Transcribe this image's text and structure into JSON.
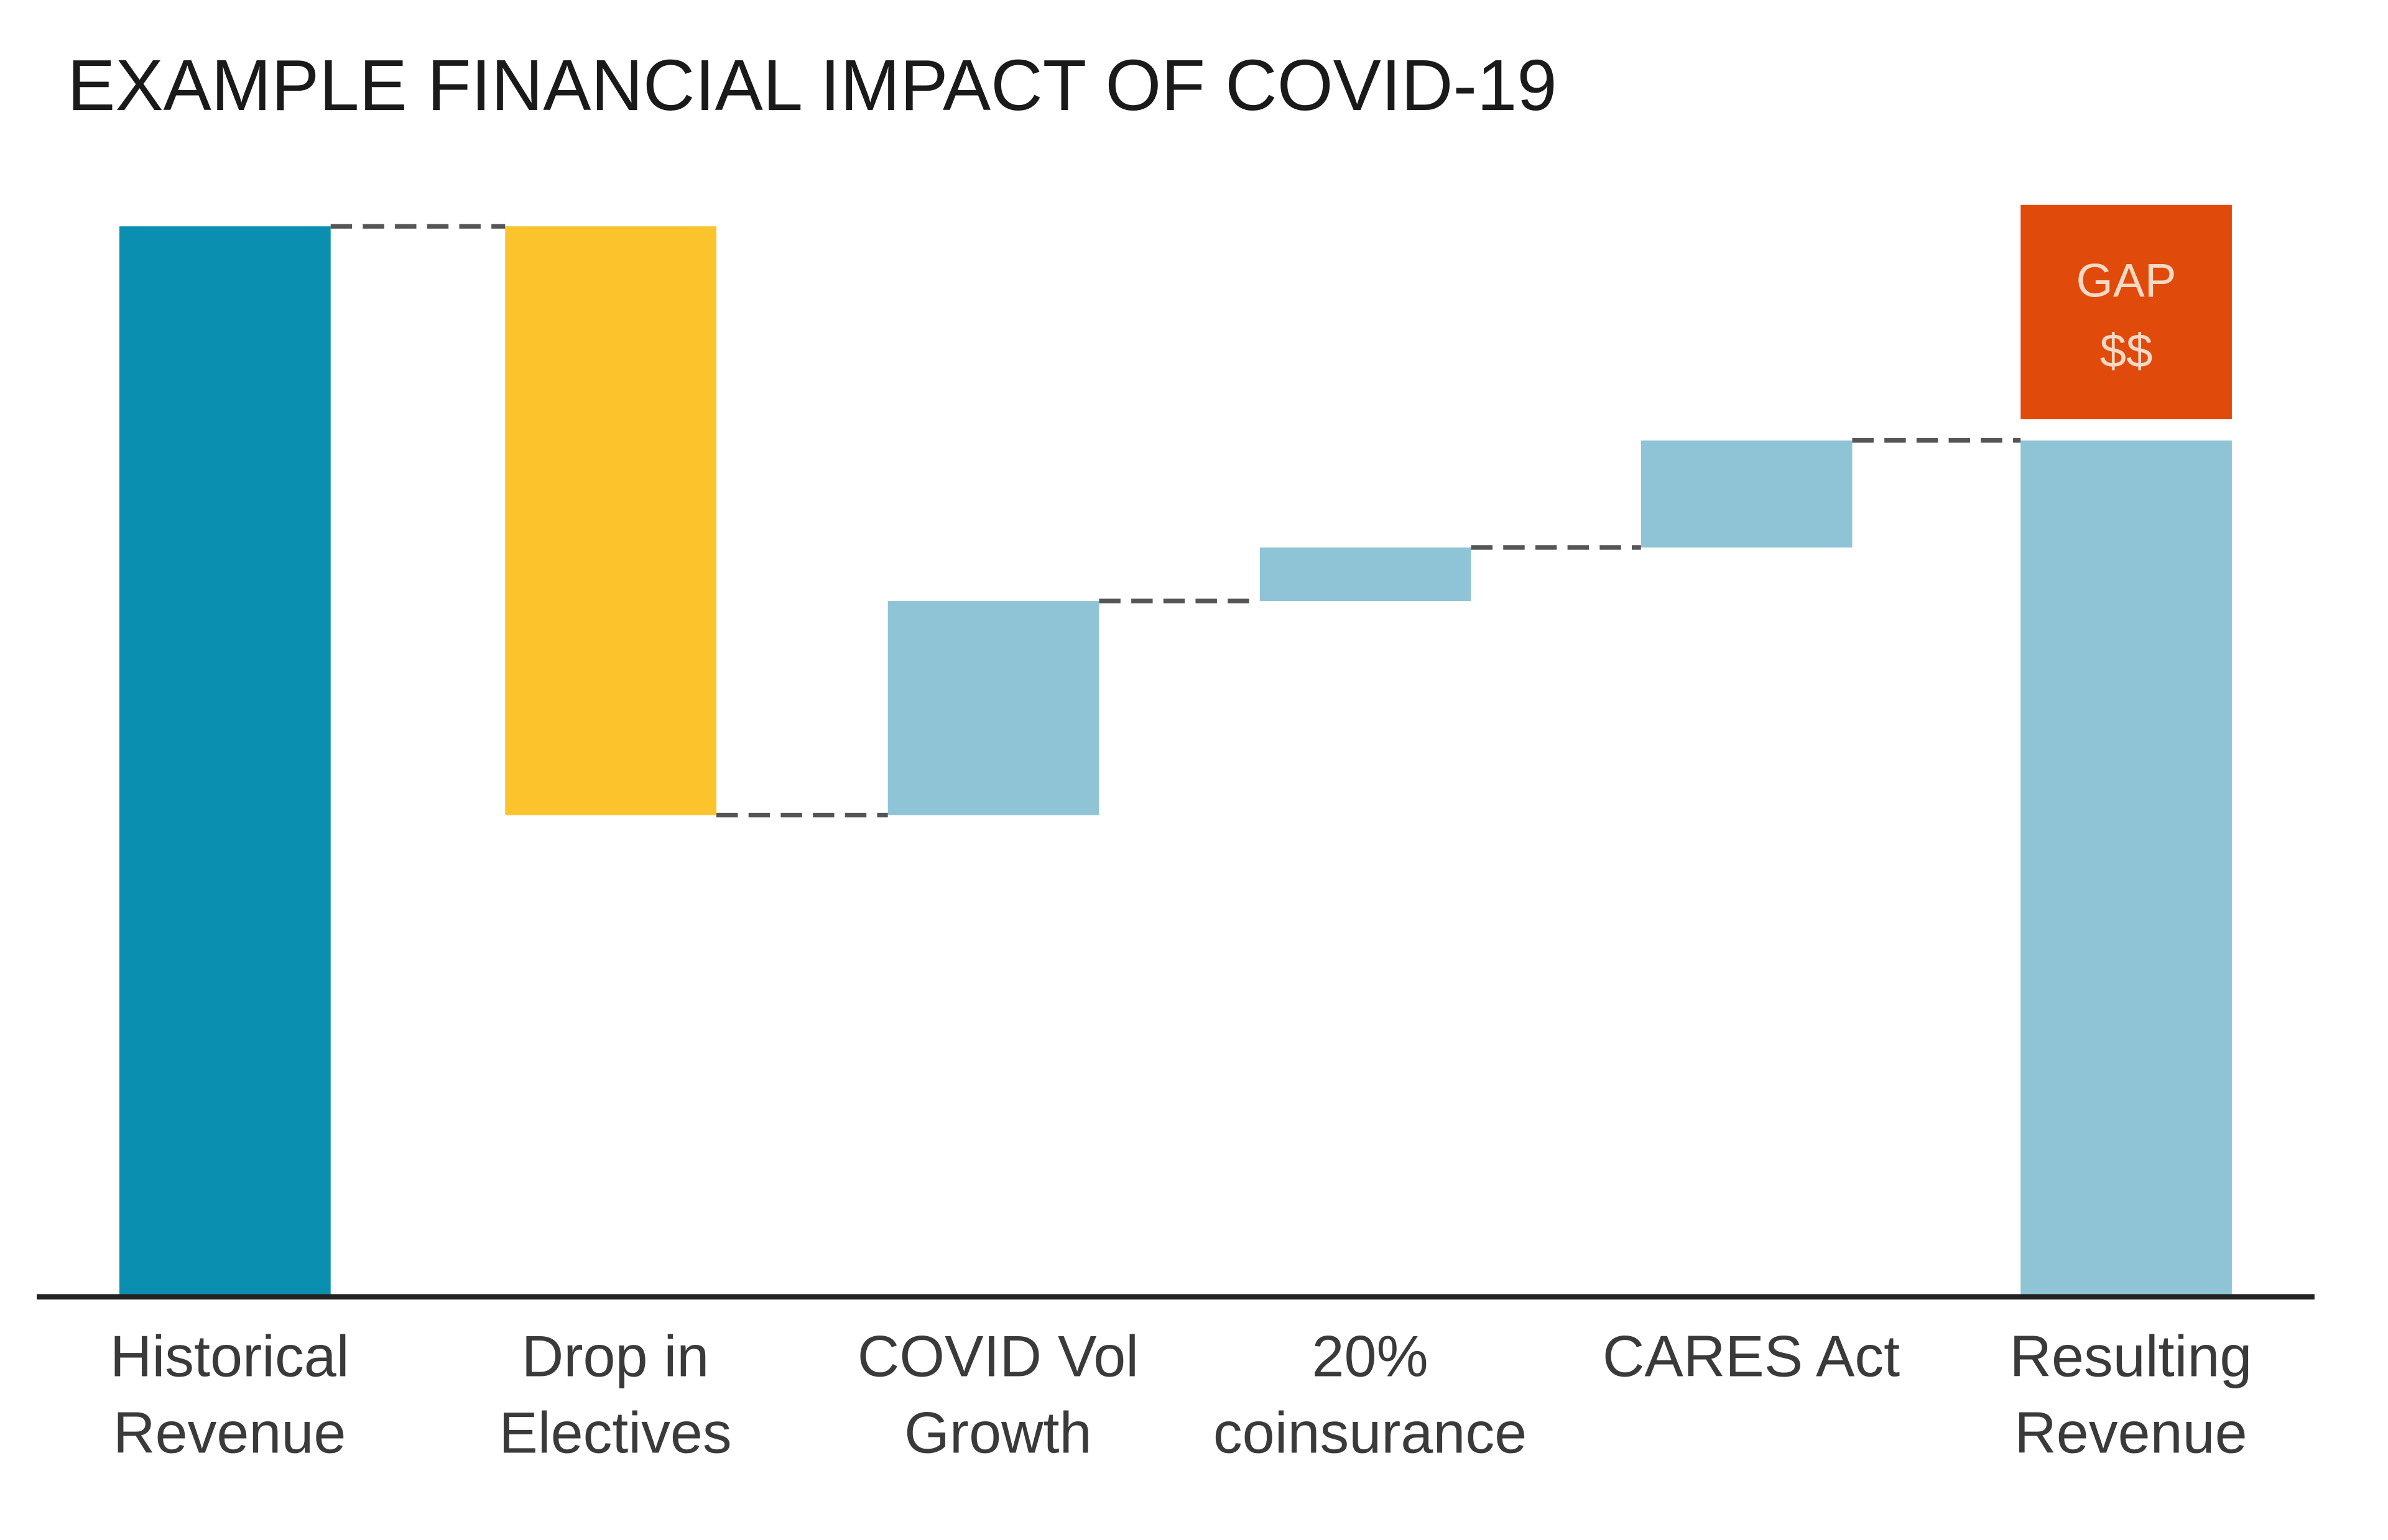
{
  "chart_data": {
    "type": "waterfall",
    "title": "EXAMPLE FINANCIAL IMPACT OF COVID-19",
    "xlabel": "",
    "ylabel": "",
    "ylim": [
      0,
      100
    ],
    "grid": false,
    "legend": "none",
    "categories": [
      [
        "Historical",
        "Revenue"
      ],
      [
        "Drop in",
        "Electives"
      ],
      [
        "COVID Vol",
        "Growth"
      ],
      [
        "20%",
        "coinsurance"
      ],
      [
        "CARES Act"
      ],
      [
        "Resulting",
        "Revenue"
      ]
    ],
    "steps": [
      {
        "name": "Historical Revenue",
        "kind": "total",
        "start": 0,
        "end": 100,
        "color": "#0b8fb0"
      },
      {
        "name": "Drop in Electives",
        "kind": "decrease",
        "start": 100,
        "end": 45,
        "color": "#fbc42c"
      },
      {
        "name": "COVID Vol Growth",
        "kind": "increase",
        "start": 45,
        "end": 65,
        "color": "#8fc4d6"
      },
      {
        "name": "20% coinsurance",
        "kind": "increase",
        "start": 65,
        "end": 70,
        "color": "#8fc4d6"
      },
      {
        "name": "CARES Act",
        "kind": "increase",
        "start": 70,
        "end": 80,
        "color": "#8fc4d6"
      },
      {
        "name": "Resulting Revenue",
        "kind": "total",
        "start": 0,
        "end": 80,
        "color": "#8fc4d6"
      }
    ],
    "gap_annotation": {
      "lines": [
        "GAP",
        "$$"
      ],
      "from": 82,
      "to": 102,
      "color": "#e04a0b",
      "text_color": "#f6d9c4"
    },
    "connector_color": "#555555",
    "axis_color": "#222222"
  }
}
